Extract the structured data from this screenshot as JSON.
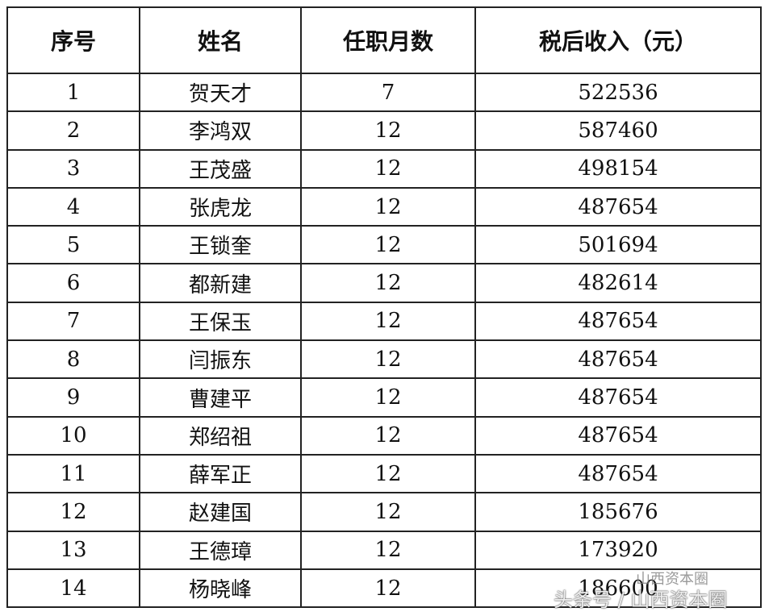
{
  "table": {
    "header": [
      "序号",
      "姓名",
      "任职月数",
      "税后收入（元）"
    ],
    "rows": [
      [
        1,
        "贺天才",
        7,
        522536
      ],
      [
        2,
        "李鸿双",
        12,
        587460
      ],
      [
        3,
        "王茂盛",
        12,
        498154
      ],
      [
        4,
        "张虎龙",
        12,
        487654
      ],
      [
        5,
        "王锁奎",
        12,
        501694
      ],
      [
        6,
        "都新建",
        12,
        482614
      ],
      [
        7,
        "王保玉",
        12,
        487654
      ],
      [
        8,
        "闫振东",
        12,
        487654
      ],
      [
        9,
        "曹建平",
        12,
        487654
      ],
      [
        10,
        "郑绍祖",
        12,
        487654
      ],
      [
        11,
        "薛军正",
        12,
        487654
      ],
      [
        12,
        "赵建国",
        12,
        185676
      ],
      [
        13,
        "王德璋",
        12,
        173920
      ],
      [
        14,
        "杨晓峰",
        12,
        186600
      ]
    ]
  },
  "watermark": {
    "small": "山西资本圈",
    "large": "头条号 / 山西资本圈"
  }
}
